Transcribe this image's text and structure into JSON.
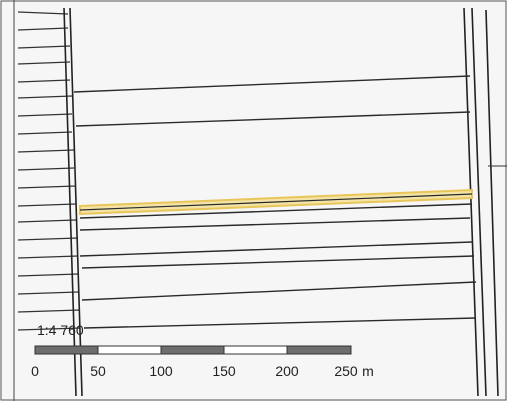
{
  "map": {
    "scale_ratio": "1:4 760",
    "scale_bar": {
      "ticks": [
        "0",
        "50",
        "100",
        "150",
        "200",
        "250"
      ],
      "unit": "m"
    },
    "colors": {
      "background": "#f6f6f6",
      "parcel_line": "#2a2a2a",
      "highlight": "#e8c65a",
      "scale_dark": "#6e6e6e",
      "scale_light": "#ffffff"
    }
  }
}
